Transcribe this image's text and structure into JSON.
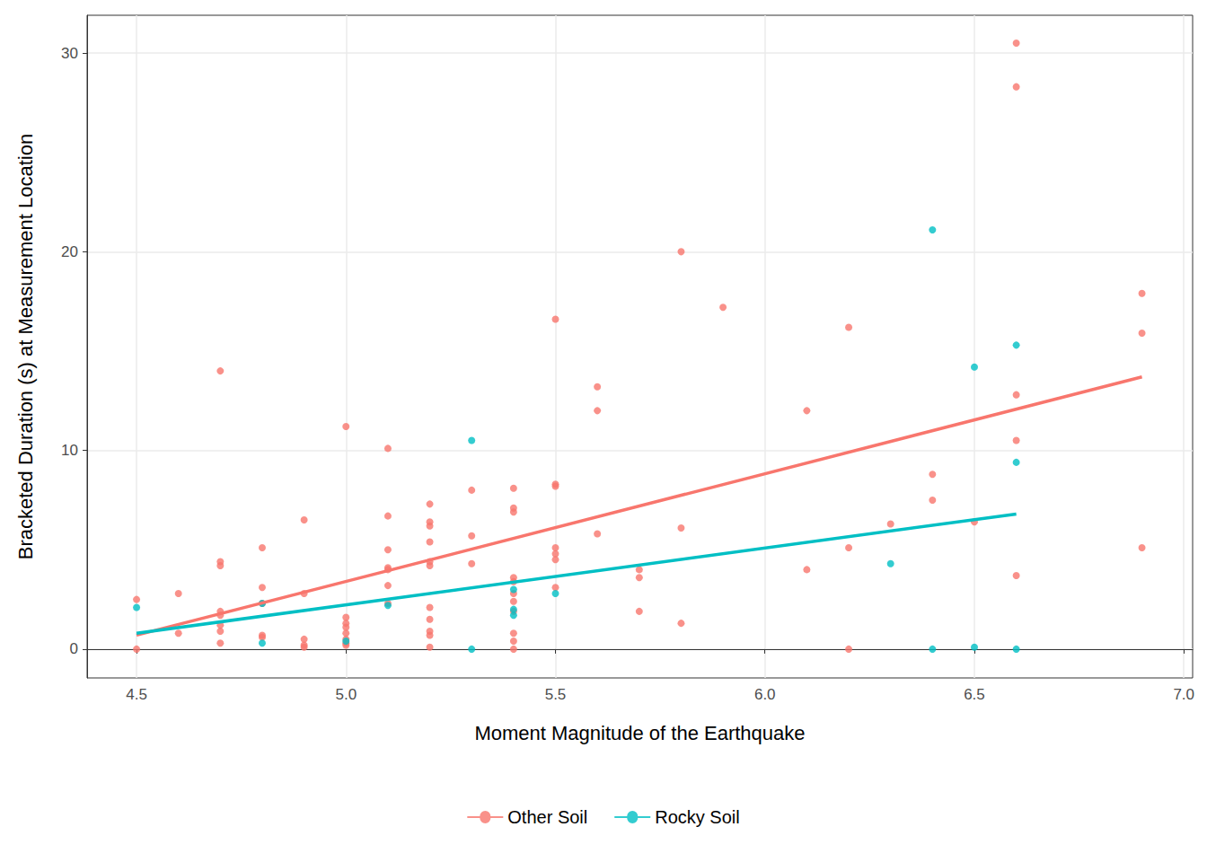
{
  "chart_data": {
    "type": "scatter",
    "x_label": "Moment Magnitude of the Earthquake",
    "y_label": "Bracketed Duration (s) at Measurement Location",
    "xlim": [
      4.382,
      7.021
    ],
    "ylim": [
      -1.45,
      31.9
    ],
    "xticks": [
      {
        "value": 4.5,
        "label": "4.5"
      },
      {
        "value": 5,
        "label": "5.0"
      },
      {
        "value": 5.5,
        "label": "5.5"
      },
      {
        "value": 6,
        "label": "6.0"
      },
      {
        "value": 6.5,
        "label": "6.5"
      },
      {
        "value": 7,
        "label": "7.0"
      }
    ],
    "yticks": [
      0,
      10,
      20,
      30
    ],
    "grid": true,
    "legend": "bottom",
    "series": [
      {
        "name": "Other Soil",
        "color": "#F8766D",
        "marker": "circle",
        "x": [
          4.5,
          4.5,
          4.6,
          4.6,
          4.7,
          4.7,
          4.7,
          4.7,
          4.7,
          4.7,
          4.7,
          4.7,
          4.8,
          4.8,
          4.8,
          4.8,
          4.8,
          4.9,
          4.9,
          4.9,
          4.9,
          4.9,
          5.0,
          5.0,
          5.0,
          5.0,
          5.0,
          5.0,
          5.0,
          5.0,
          5.1,
          5.1,
          5.1,
          5.1,
          5.1,
          5.1,
          5.1,
          5.2,
          5.2,
          5.2,
          5.2,
          5.2,
          5.2,
          5.2,
          5.2,
          5.2,
          5.2,
          5.2,
          5.3,
          5.3,
          5.3,
          5.4,
          5.4,
          5.4,
          5.4,
          5.4,
          5.4,
          5.4,
          5.4,
          5.4,
          5.4,
          5.4,
          5.5,
          5.5,
          5.5,
          5.5,
          5.5,
          5.5,
          5.5,
          5.6,
          5.6,
          5.6,
          5.7,
          5.7,
          5.7,
          5.8,
          5.8,
          5.8,
          5.9,
          6.1,
          6.1,
          6.2,
          6.2,
          6.2,
          6.3,
          6.4,
          6.4,
          6.5,
          6.6,
          6.6,
          6.6,
          6.6,
          6.6,
          6.9,
          6.9,
          6.9
        ],
        "values": [
          2.5,
          0.0,
          2.8,
          0.8,
          14.0,
          4.4,
          4.2,
          1.9,
          1.7,
          1.2,
          0.9,
          0.3,
          5.1,
          3.1,
          2.3,
          0.7,
          0.6,
          6.5,
          2.8,
          0.5,
          0.2,
          0.1,
          11.2,
          1.6,
          1.3,
          1.1,
          0.8,
          0.5,
          0.3,
          0.2,
          10.1,
          6.7,
          5.0,
          4.1,
          4.0,
          3.2,
          2.3,
          7.3,
          6.4,
          6.2,
          5.4,
          4.4,
          4.2,
          2.1,
          1.5,
          0.9,
          0.7,
          0.1,
          8.0,
          5.7,
          4.3,
          8.1,
          7.1,
          6.9,
          3.6,
          3.4,
          2.8,
          2.4,
          1.9,
          0.8,
          0.4,
          0.0,
          16.6,
          8.3,
          8.2,
          5.1,
          4.8,
          4.5,
          3.1,
          13.2,
          12.0,
          5.8,
          4.0,
          3.6,
          1.9,
          20.0,
          6.1,
          1.3,
          17.2,
          12.0,
          4.0,
          16.2,
          5.1,
          0.0,
          6.3,
          8.8,
          7.5,
          6.4,
          30.5,
          28.3,
          12.8,
          10.5,
          3.7,
          17.9,
          15.9,
          5.1
        ],
        "fit": {
          "x": [
            4.5,
            6.9
          ],
          "values": [
            0.7,
            13.7
          ]
        }
      },
      {
        "name": "Rocky Soil",
        "color": "#00BFC4",
        "marker": "circle",
        "x": [
          4.5,
          4.8,
          4.8,
          5.0,
          5.1,
          5.3,
          5.3,
          5.4,
          5.4,
          5.4,
          5.5,
          6.3,
          6.4,
          6.4,
          6.5,
          6.5,
          6.6,
          6.6,
          6.6
        ],
        "values": [
          2.1,
          2.3,
          0.3,
          0.4,
          2.2,
          10.5,
          0.0,
          3.0,
          2.0,
          1.7,
          2.8,
          4.3,
          21.1,
          0.0,
          14.2,
          0.1,
          15.3,
          9.4,
          0.0
        ],
        "fit": {
          "x": [
            4.5,
            6.6
          ],
          "values": [
            0.8,
            6.8
          ]
        }
      }
    ]
  }
}
